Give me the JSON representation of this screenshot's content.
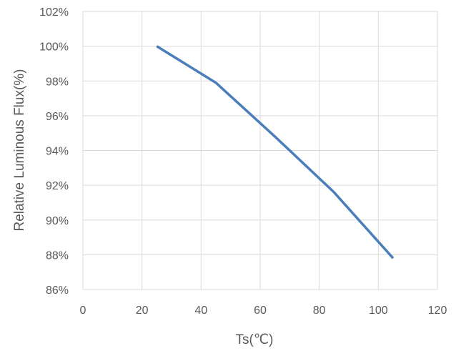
{
  "chart_data": {
    "type": "line",
    "title": "",
    "xlabel": "Ts(℃)",
    "ylabel": "Relative Luminous Flux(%)",
    "xlim": [
      0,
      120
    ],
    "ylim": [
      86,
      102
    ],
    "x_ticks": [
      0,
      20,
      40,
      60,
      80,
      100,
      120
    ],
    "y_ticks": [
      86,
      88,
      90,
      92,
      94,
      96,
      98,
      100,
      102
    ],
    "x_tick_labels": [
      "0",
      "20",
      "40",
      "60",
      "80",
      "100",
      "120"
    ],
    "y_tick_labels": [
      "86%",
      "88%",
      "90%",
      "92%",
      "94%",
      "96%",
      "98%",
      "100%",
      "102%"
    ],
    "grid": true,
    "legend": "none",
    "series": [
      {
        "color": "#4a7ebb",
        "x": [
          25,
          45,
          65,
          85,
          105
        ],
        "y": [
          100.0,
          97.9,
          94.8,
          91.6,
          87.8
        ]
      }
    ],
    "colors": {
      "grid": "#d9d9d9",
      "text": "#595959",
      "line": "#4a7ebb"
    }
  }
}
